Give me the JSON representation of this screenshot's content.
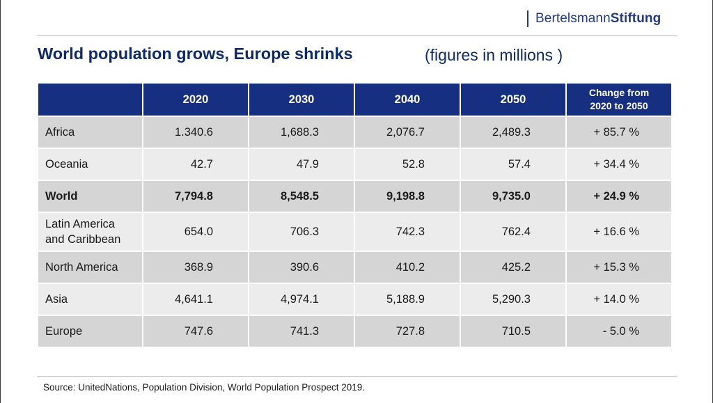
{
  "brand": {
    "part1": "Bertelsmann",
    "part2": "Stiftung"
  },
  "title": "World population grows, Europe shrinks",
  "subtitle": "(figures in millions )",
  "source": "Source: UnitedNations, Population Division, World Population Prospect 2019.",
  "colors": {
    "header_bg": "#162f80",
    "title": "#0d2a6b",
    "row_dark": "#d5d5d5",
    "row_light": "#ececec"
  },
  "chart_data": {
    "type": "table",
    "columns": [
      "",
      "2020",
      "2030",
      "2040",
      "2050",
      "Change from\n2020 to 2050"
    ],
    "rows": [
      {
        "region": "Africa",
        "v2020": "1.340.6",
        "v2030": "1,688.3",
        "v2040": "2,076.7",
        "v2050": "2,489.3",
        "change": "+ 85.7 %"
      },
      {
        "region": "Oceania",
        "v2020": "42.7",
        "v2030": "47.9",
        "v2040": "52.8",
        "v2050": "57.4",
        "change": "+ 34.4 %"
      },
      {
        "region": "World",
        "v2020": "7,794.8",
        "v2030": "8,548.5",
        "v2040": "9,198.8",
        "v2050": "9,735.0",
        "change": "+ 24.9 %"
      },
      {
        "region": "Latin America\nand Caribbean",
        "v2020": "654.0",
        "v2030": "706.3",
        "v2040": "742.3",
        "v2050": "762.4",
        "change": "+ 16.6 %"
      },
      {
        "region": "North America",
        "v2020": "368.9",
        "v2030": "390.6",
        "v2040": "410.2",
        "v2050": "425.2",
        "change": "+ 15.3 %"
      },
      {
        "region": "Asia",
        "v2020": "4,641.1",
        "v2030": "4,974.1",
        "v2040": "5,188.9",
        "v2050": "5,290.3",
        "change": "+ 14.0 %"
      },
      {
        "region": "Europe",
        "v2020": "747.6",
        "v2030": "741.3",
        "v2040": "727.8",
        "v2050": "710.5",
        "change": "- 5.0 %"
      }
    ]
  }
}
